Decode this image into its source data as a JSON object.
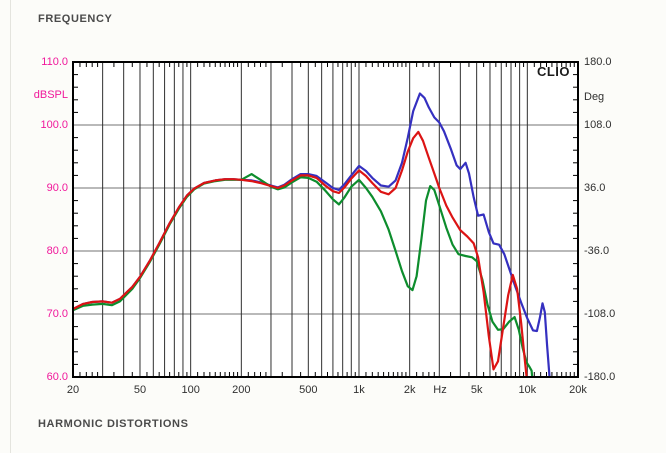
{
  "page": {
    "header_title": "FREQUENCY",
    "footer_title": "HARMONIC DISTORTIONS",
    "brand": "CLIO"
  },
  "chart_data": {
    "type": "line",
    "title": "FREQUENCY",
    "grid": true,
    "legend": "none",
    "x_axis": {
      "scale": "log",
      "min": 20,
      "max": 20000,
      "ticks": [
        {
          "f": 20,
          "label": "20"
        },
        {
          "f": 50,
          "label": "50"
        },
        {
          "f": 100,
          "label": "100"
        },
        {
          "f": 200,
          "label": "200"
        },
        {
          "f": 500,
          "label": "500"
        },
        {
          "f": 1000,
          "label": "1k"
        },
        {
          "f": 2000,
          "label": "2k"
        },
        {
          "f": 3030,
          "label": "Hz",
          "is_unit": true
        },
        {
          "f": 5000,
          "label": "5k"
        },
        {
          "f": 10000,
          "label": "10k"
        },
        {
          "f": 20000,
          "label": "20k"
        }
      ]
    },
    "y_left": {
      "label": "dBSPL",
      "min": 60,
      "max": 110,
      "ticks": [
        110.0,
        100.0,
        90.0,
        80.0,
        70.0,
        60.0
      ],
      "tick_labels": [
        "110.0",
        "100.0",
        "90.0",
        "80.0",
        "70.0",
        "60.0"
      ],
      "color": "#f0189b"
    },
    "y_right": {
      "label": "Deg",
      "min": -180,
      "max": 180,
      "ticks": [
        180.0,
        108.0,
        36.0,
        -36.0,
        -108.0,
        -180.0
      ],
      "tick_labels": [
        "180.0",
        "108.0",
        "36.0",
        "-36.0",
        "-108.0",
        "-180.0"
      ],
      "color": "#303030"
    },
    "series": [
      {
        "name": "blue-trace",
        "color": "#3530c0",
        "points": [
          [
            20,
            70.8
          ],
          [
            23,
            71.6
          ],
          [
            26,
            71.9
          ],
          [
            30,
            72.0
          ],
          [
            34,
            71.8
          ],
          [
            38,
            72.4
          ],
          [
            45,
            74.3
          ],
          [
            50,
            75.9
          ],
          [
            57,
            78.4
          ],
          [
            65,
            81.2
          ],
          [
            75,
            84.4
          ],
          [
            85,
            86.9
          ],
          [
            95,
            88.8
          ],
          [
            105,
            89.9
          ],
          [
            120,
            90.8
          ],
          [
            140,
            91.2
          ],
          [
            160,
            91.4
          ],
          [
            180,
            91.4
          ],
          [
            200,
            91.3
          ],
          [
            230,
            91.2
          ],
          [
            260,
            90.9
          ],
          [
            300,
            90.4
          ],
          [
            330,
            90.1
          ],
          [
            360,
            90.5
          ],
          [
            400,
            91.4
          ],
          [
            450,
            92.2
          ],
          [
            500,
            92.2
          ],
          [
            560,
            91.9
          ],
          [
            630,
            90.9
          ],
          [
            700,
            90.0
          ],
          [
            760,
            89.7
          ],
          [
            820,
            90.6
          ],
          [
            900,
            92.0
          ],
          [
            1000,
            93.5
          ],
          [
            1100,
            92.7
          ],
          [
            1200,
            91.6
          ],
          [
            1350,
            90.4
          ],
          [
            1500,
            90.2
          ],
          [
            1650,
            91.2
          ],
          [
            1800,
            94.0
          ],
          [
            1950,
            98.0
          ],
          [
            2100,
            102.2
          ],
          [
            2300,
            105.0
          ],
          [
            2450,
            104.3
          ],
          [
            2600,
            102.8
          ],
          [
            2800,
            101.2
          ],
          [
            3000,
            100.4
          ],
          [
            3200,
            99.0
          ],
          [
            3500,
            96.3
          ],
          [
            3800,
            93.6
          ],
          [
            4000,
            93.0
          ],
          [
            4300,
            94.0
          ],
          [
            4500,
            92.3
          ],
          [
            4800,
            88.5
          ],
          [
            5100,
            85.6
          ],
          [
            5500,
            85.8
          ],
          [
            5900,
            83.0
          ],
          [
            6300,
            81.2
          ],
          [
            6800,
            81.0
          ],
          [
            7300,
            79.5
          ],
          [
            7800,
            77.2
          ],
          [
            8500,
            74.3
          ],
          [
            9200,
            71.8
          ],
          [
            10000,
            69.3
          ],
          [
            10800,
            67.4
          ],
          [
            11400,
            67.3
          ],
          [
            11900,
            69.5
          ],
          [
            12300,
            71.7
          ],
          [
            12700,
            70.3
          ],
          [
            13100,
            65.0
          ],
          [
            13500,
            60.5
          ],
          [
            13700,
            58.0
          ]
        ]
      },
      {
        "name": "green-trace",
        "color": "#0d8d2d",
        "points": [
          [
            20,
            70.6
          ],
          [
            23,
            71.3
          ],
          [
            26,
            71.5
          ],
          [
            30,
            71.6
          ],
          [
            34,
            71.4
          ],
          [
            38,
            72.0
          ],
          [
            45,
            74.0
          ],
          [
            50,
            75.7
          ],
          [
            57,
            78.2
          ],
          [
            65,
            81.0
          ],
          [
            75,
            84.2
          ],
          [
            85,
            86.7
          ],
          [
            95,
            88.6
          ],
          [
            105,
            89.8
          ],
          [
            120,
            90.7
          ],
          [
            140,
            91.1
          ],
          [
            160,
            91.3
          ],
          [
            180,
            91.3
          ],
          [
            200,
            91.3
          ],
          [
            230,
            92.2
          ],
          [
            260,
            91.3
          ],
          [
            300,
            90.2
          ],
          [
            330,
            89.8
          ],
          [
            360,
            90.1
          ],
          [
            400,
            90.9
          ],
          [
            450,
            91.7
          ],
          [
            500,
            91.6
          ],
          [
            560,
            91.0
          ],
          [
            630,
            89.6
          ],
          [
            700,
            88.2
          ],
          [
            760,
            87.4
          ],
          [
            820,
            88.5
          ],
          [
            900,
            90.2
          ],
          [
            1000,
            91.3
          ],
          [
            1100,
            90.0
          ],
          [
            1200,
            88.6
          ],
          [
            1350,
            86.3
          ],
          [
            1500,
            83.4
          ],
          [
            1650,
            80.0
          ],
          [
            1800,
            76.8
          ],
          [
            1950,
            74.4
          ],
          [
            2080,
            73.8
          ],
          [
            2200,
            76.0
          ],
          [
            2350,
            82.0
          ],
          [
            2500,
            88.0
          ],
          [
            2650,
            90.3
          ],
          [
            2800,
            89.7
          ],
          [
            3000,
            87.2
          ],
          [
            3300,
            83.7
          ],
          [
            3600,
            81.0
          ],
          [
            3900,
            79.5
          ],
          [
            4300,
            79.2
          ],
          [
            4700,
            79.0
          ],
          [
            5000,
            78.4
          ],
          [
            5400,
            75.5
          ],
          [
            5800,
            71.5
          ],
          [
            6200,
            68.8
          ],
          [
            6700,
            67.5
          ],
          [
            7200,
            67.6
          ],
          [
            7800,
            68.8
          ],
          [
            8400,
            69.5
          ],
          [
            8900,
            67.5
          ],
          [
            9400,
            64.5
          ],
          [
            9900,
            62.3
          ],
          [
            10300,
            61.6
          ],
          [
            10600,
            61.0
          ],
          [
            10800,
            58.5
          ]
        ]
      },
      {
        "name": "red-trace",
        "color": "#dc1414",
        "points": [
          [
            20,
            70.8
          ],
          [
            23,
            71.6
          ],
          [
            26,
            71.9
          ],
          [
            30,
            72.0
          ],
          [
            34,
            71.8
          ],
          [
            38,
            72.4
          ],
          [
            45,
            74.3
          ],
          [
            50,
            75.9
          ],
          [
            57,
            78.4
          ],
          [
            65,
            81.2
          ],
          [
            75,
            84.4
          ],
          [
            85,
            86.9
          ],
          [
            95,
            88.8
          ],
          [
            105,
            89.9
          ],
          [
            120,
            90.8
          ],
          [
            140,
            91.2
          ],
          [
            160,
            91.4
          ],
          [
            180,
            91.4
          ],
          [
            200,
            91.3
          ],
          [
            230,
            91.1
          ],
          [
            260,
            90.8
          ],
          [
            300,
            90.3
          ],
          [
            330,
            90.0
          ],
          [
            360,
            90.4
          ],
          [
            400,
            91.2
          ],
          [
            450,
            92.0
          ],
          [
            500,
            92.0
          ],
          [
            560,
            91.6
          ],
          [
            630,
            90.4
          ],
          [
            700,
            89.5
          ],
          [
            760,
            89.2
          ],
          [
            820,
            90.1
          ],
          [
            900,
            91.5
          ],
          [
            1000,
            92.8
          ],
          [
            1100,
            91.9
          ],
          [
            1200,
            90.8
          ],
          [
            1350,
            89.4
          ],
          [
            1500,
            89.0
          ],
          [
            1650,
            90.0
          ],
          [
            1800,
            92.8
          ],
          [
            1950,
            95.8
          ],
          [
            2100,
            97.9
          ],
          [
            2250,
            98.9
          ],
          [
            2400,
            97.5
          ],
          [
            2600,
            94.8
          ],
          [
            2800,
            92.3
          ],
          [
            3000,
            90.0
          ],
          [
            3300,
            87.2
          ],
          [
            3600,
            85.3
          ],
          [
            4000,
            83.3
          ],
          [
            4400,
            82.3
          ],
          [
            4800,
            81.2
          ],
          [
            5100,
            79.0
          ],
          [
            5500,
            73.5
          ],
          [
            5900,
            66.5
          ],
          [
            6300,
            61.2
          ],
          [
            6700,
            62.5
          ],
          [
            7200,
            68.0
          ],
          [
            7700,
            73.0
          ],
          [
            8200,
            76.2
          ],
          [
            8700,
            74.0
          ],
          [
            9200,
            68.5
          ],
          [
            9600,
            63.5
          ],
          [
            9900,
            60.0
          ],
          [
            10050,
            57.5
          ]
        ]
      }
    ],
    "style": {
      "vgrid_color": "#2f2f2f",
      "hgrid_color": "#8f8f8f",
      "border_color": "#000000",
      "plot_bg": "#ffffff"
    }
  }
}
